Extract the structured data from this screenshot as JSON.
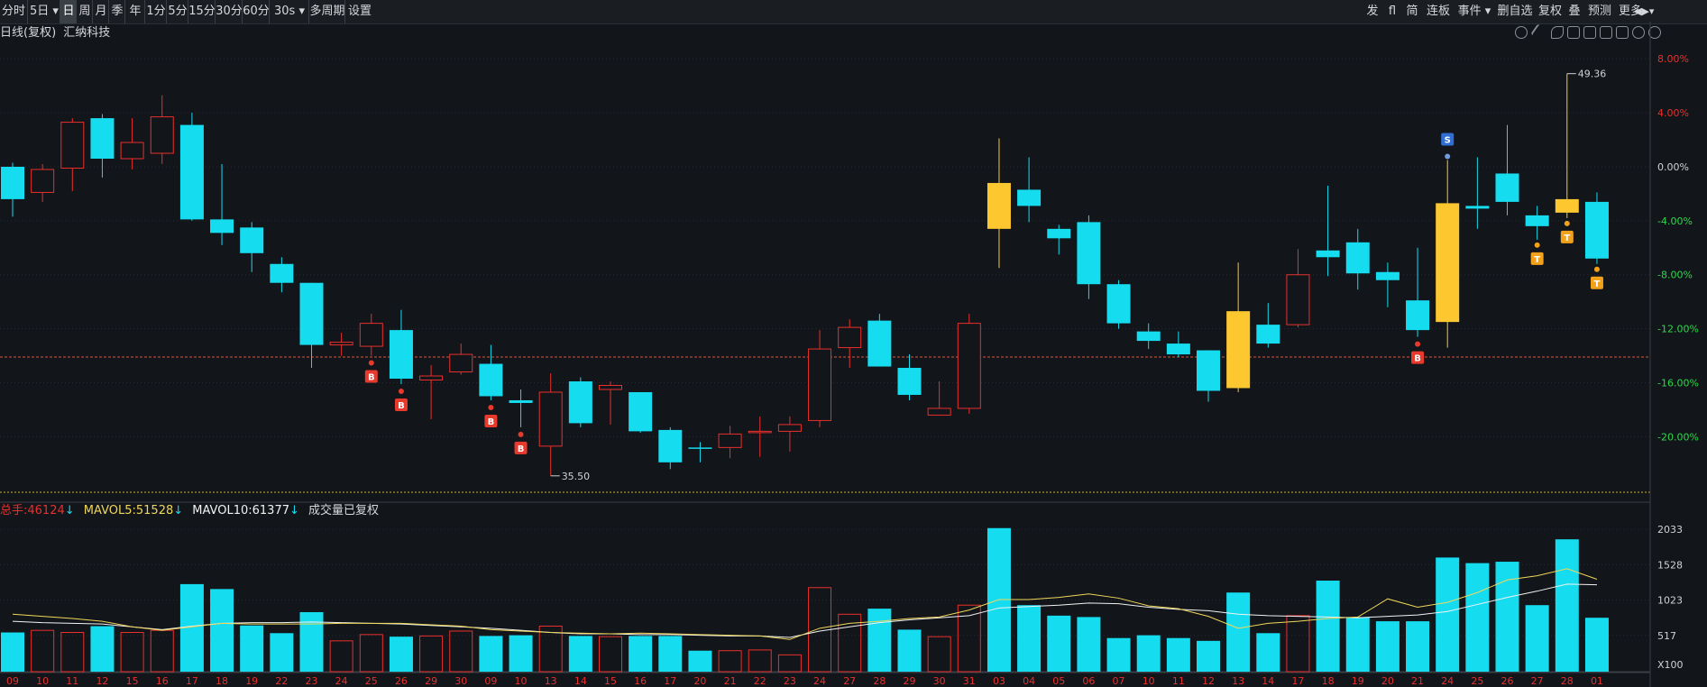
{
  "toolbar": {
    "left": [
      {
        "label": "分时",
        "name": "period-fenshi"
      },
      {
        "label": "5日",
        "name": "period-5day",
        "dropdown": true
      },
      {
        "label": "日",
        "name": "period-day",
        "selected": true
      },
      {
        "label": "周",
        "name": "period-week"
      },
      {
        "label": "月",
        "name": "period-month"
      },
      {
        "label": "季",
        "name": "period-quarter"
      },
      {
        "label": "年",
        "name": "period-year"
      },
      {
        "label": "1分",
        "name": "period-1min"
      },
      {
        "label": "5分",
        "name": "period-5min"
      },
      {
        "label": "15分",
        "name": "period-15min"
      },
      {
        "label": "30分",
        "name": "period-30min"
      },
      {
        "label": "60分",
        "name": "period-60min"
      },
      {
        "label": "30s",
        "name": "period-30s",
        "dropdown": true
      },
      {
        "label": "多周期",
        "name": "multi-period"
      },
      {
        "label": "设置",
        "name": "settings"
      }
    ],
    "right": [
      {
        "label": "发",
        "name": "tool-fa"
      },
      {
        "label": "fl",
        "name": "tool-fl"
      },
      {
        "label": "简",
        "name": "tool-jian"
      },
      {
        "label": "连板",
        "name": "tool-lianban"
      },
      {
        "label": "事件",
        "name": "tool-events",
        "dropdown": true
      },
      {
        "label": "删自选",
        "name": "tool-remove-watch"
      },
      {
        "label": "复权",
        "name": "tool-fuquan"
      },
      {
        "label": "叠",
        "name": "tool-overlay"
      },
      {
        "label": "预测",
        "name": "tool-forecast"
      },
      {
        "label": "更多",
        "name": "tool-more"
      }
    ]
  },
  "info": {
    "mode": "日线(复权)",
    "stock": "汇纳科技"
  },
  "volume_info": {
    "total_label": "总手:",
    "total_value": "46124",
    "total_arrow": "↓",
    "mavol5_label": "MAVOL5:",
    "mavol5_value": "51528",
    "mavol5_arrow": "↓",
    "mavol10_label": "MAVOL10:",
    "mavol10_value": "61377",
    "mavol10_arrow": "↓",
    "note": "成交量已复权"
  },
  "colors": {
    "up": "#e8302c",
    "down": "#16dcf0",
    "highlight": "#fdc730",
    "ma5": "#f0d75a",
    "ma10": "#f2f2f2",
    "signal_b": "#e8392d",
    "signal_s": "#2f6fd3",
    "signal_t": "#f2a21a"
  },
  "chart_data": {
    "type": "candlestick",
    "price_axis_label_unit": "%",
    "price_ticks": [
      "8.00%",
      "4.00%",
      "0.00%",
      "-4.00%",
      "-8.00%",
      "-12.00%",
      "-16.00%",
      "-20.00%"
    ],
    "price_tick_values": [
      8,
      4,
      0,
      -4,
      -8,
      -12,
      -16,
      -20
    ],
    "ylim_pct": [
      -24.25,
      9.15
    ],
    "reference_line_pct": -14.1,
    "annotations": [
      {
        "text": "49.36",
        "candle": 52,
        "at": "high"
      },
      {
        "text": "35.50",
        "candle": 18,
        "at": "low"
      }
    ],
    "dates": [
      "09",
      "10",
      "11",
      "12",
      "15",
      "16",
      "17",
      "18",
      "19",
      "22",
      "23",
      "24",
      "25",
      "26",
      "29",
      "30",
      "09",
      "10",
      "13",
      "14",
      "15",
      "16",
      "17",
      "20",
      "21",
      "22",
      "23",
      "24",
      "27",
      "28",
      "29",
      "30",
      "31",
      "03",
      "04",
      "05",
      "06",
      "07",
      "10",
      "11",
      "12",
      "13",
      "14",
      "17",
      "18",
      "19",
      "20",
      "21",
      "24",
      "25",
      "26",
      "27",
      "28",
      "01"
    ],
    "candles": [
      {
        "o": -2.4,
        "c": 0.0,
        "h": 0.3,
        "l": -3.7,
        "t": "d"
      },
      {
        "o": -1.9,
        "c": -0.2,
        "h": 0.2,
        "l": -2.6,
        "t": "u"
      },
      {
        "o": -0.1,
        "c": 3.3,
        "h": 3.6,
        "l": -1.8,
        "t": "u"
      },
      {
        "o": 3.6,
        "c": 0.6,
        "h": 3.9,
        "l": -0.8,
        "t": "d"
      },
      {
        "o": 0.6,
        "c": 1.8,
        "h": 3.6,
        "l": -0.2,
        "t": "u"
      },
      {
        "o": 1.0,
        "c": 3.7,
        "h": 5.3,
        "l": 0.2,
        "t": "u"
      },
      {
        "o": 3.1,
        "c": -3.9,
        "h": 4.0,
        "l": -4.0,
        "t": "d"
      },
      {
        "o": -3.9,
        "c": -4.9,
        "h": 0.2,
        "l": -5.8,
        "t": "d"
      },
      {
        "o": -4.5,
        "c": -6.4,
        "h": -4.1,
        "l": -7.8,
        "t": "d"
      },
      {
        "o": -7.2,
        "c": -8.6,
        "h": -6.7,
        "l": -9.3,
        "t": "d"
      },
      {
        "o": -8.6,
        "c": -13.2,
        "h": -8.6,
        "l": -14.9,
        "t": "d"
      },
      {
        "o": -13.2,
        "c": -13.0,
        "h": -12.3,
        "l": -14.0,
        "t": "u"
      },
      {
        "o": -13.3,
        "c": -11.6,
        "h": -10.9,
        "l": -14.0,
        "t": "u"
      },
      {
        "o": -12.1,
        "c": -15.7,
        "h": -10.6,
        "l": -16.1,
        "t": "d"
      },
      {
        "o": -15.8,
        "c": -15.5,
        "h": -14.7,
        "l": -18.7,
        "t": "u"
      },
      {
        "o": -15.2,
        "c": -13.9,
        "h": -13.1,
        "l": -15.4,
        "t": "u"
      },
      {
        "o": -14.6,
        "c": -17.0,
        "h": -13.2,
        "l": -17.3,
        "t": "d"
      },
      {
        "o": -17.3,
        "c": -17.5,
        "h": -16.5,
        "l": -19.3,
        "t": "d"
      },
      {
        "o": -20.7,
        "c": -16.7,
        "h": -15.3,
        "l": -22.9,
        "t": "u"
      },
      {
        "o": -15.9,
        "c": -19.0,
        "h": -15.6,
        "l": -19.3,
        "t": "d"
      },
      {
        "o": -16.5,
        "c": -16.2,
        "h": -15.9,
        "l": -19.1,
        "t": "u"
      },
      {
        "o": -16.7,
        "c": -19.6,
        "h": -16.7,
        "l": -19.7,
        "t": "d"
      },
      {
        "o": -19.5,
        "c": -21.9,
        "h": -19.3,
        "l": -22.4,
        "t": "d"
      },
      {
        "o": -20.8,
        "c": -20.8,
        "h": -20.4,
        "l": -21.9,
        "t": "d"
      },
      {
        "o": -20.8,
        "c": -19.8,
        "h": -19.2,
        "l": -21.6,
        "t": "u"
      },
      {
        "o": -19.6,
        "c": -19.6,
        "h": -18.5,
        "l": -21.5,
        "t": "u"
      },
      {
        "o": -19.6,
        "c": -19.1,
        "h": -18.5,
        "l": -21.1,
        "t": "u"
      },
      {
        "o": -18.8,
        "c": -13.5,
        "h": -12.1,
        "l": -19.3,
        "t": "u"
      },
      {
        "o": -13.4,
        "c": -11.9,
        "h": -11.3,
        "l": -14.9,
        "t": "u"
      },
      {
        "o": -11.4,
        "c": -14.8,
        "h": -10.9,
        "l": -14.8,
        "t": "d"
      },
      {
        "o": -14.9,
        "c": -16.9,
        "h": -13.9,
        "l": -17.3,
        "t": "d"
      },
      {
        "o": -18.4,
        "c": -17.9,
        "h": -15.9,
        "l": -18.4,
        "t": "u"
      },
      {
        "o": -17.9,
        "c": -11.6,
        "h": -10.9,
        "l": -18.3,
        "t": "u"
      },
      {
        "o": -1.2,
        "c": -4.6,
        "h": 2.1,
        "l": -7.5,
        "t": "h"
      },
      {
        "o": -1.7,
        "c": -2.9,
        "h": 0.7,
        "l": -4.1,
        "t": "d"
      },
      {
        "o": -4.6,
        "c": -5.3,
        "h": -4.3,
        "l": -6.5,
        "t": "d"
      },
      {
        "o": -4.1,
        "c": -8.7,
        "h": -3.6,
        "l": -9.8,
        "t": "d"
      },
      {
        "o": -8.7,
        "c": -11.6,
        "h": -8.4,
        "l": -12.0,
        "t": "d"
      },
      {
        "o": -12.2,
        "c": -12.9,
        "h": -11.6,
        "l": -13.5,
        "t": "d"
      },
      {
        "o": -13.1,
        "c": -13.9,
        "h": -12.2,
        "l": -14.1,
        "t": "d"
      },
      {
        "o": -13.6,
        "c": -16.6,
        "h": -13.6,
        "l": -17.4,
        "t": "d"
      },
      {
        "o": -16.4,
        "c": -10.7,
        "h": -7.1,
        "l": -16.7,
        "t": "h"
      },
      {
        "o": -11.7,
        "c": -13.1,
        "h": -10.1,
        "l": -13.4,
        "t": "d"
      },
      {
        "o": -11.7,
        "c": -8.0,
        "h": -6.1,
        "l": -11.9,
        "t": "u"
      },
      {
        "o": -6.2,
        "c": -6.7,
        "h": -1.4,
        "l": -8.1,
        "t": "d"
      },
      {
        "o": -5.6,
        "c": -7.9,
        "h": -4.6,
        "l": -9.1,
        "t": "d"
      },
      {
        "o": -7.8,
        "c": -8.4,
        "h": -7.1,
        "l": -10.4,
        "t": "d"
      },
      {
        "o": -9.9,
        "c": -12.1,
        "h": -6.0,
        "l": -12.6,
        "t": "d"
      },
      {
        "o": -11.5,
        "c": -2.7,
        "h": 0.5,
        "l": -13.4,
        "t": "h"
      },
      {
        "o": -2.9,
        "c": -3.1,
        "h": 0.7,
        "l": -4.6,
        "t": "d"
      },
      {
        "o": -0.5,
        "c": -2.6,
        "h": 3.1,
        "l": -3.6,
        "t": "d"
      },
      {
        "o": -3.6,
        "c": -4.4,
        "h": -2.9,
        "l": -5.4,
        "t": "d"
      },
      {
        "o": -2.4,
        "c": -3.4,
        "h": 6.9,
        "l": -3.8,
        "t": "h"
      },
      {
        "o": -2.6,
        "c": -6.8,
        "h": -1.9,
        "l": -7.2,
        "t": "d"
      }
    ],
    "signals": [
      {
        "candle": 12,
        "type": "B"
      },
      {
        "candle": 13,
        "type": "B"
      },
      {
        "candle": 16,
        "type": "B"
      },
      {
        "candle": 17,
        "type": "B"
      },
      {
        "candle": 47,
        "type": "B"
      },
      {
        "candle": 48,
        "type": "S"
      },
      {
        "candle": 51,
        "type": "T"
      },
      {
        "candle": 52,
        "type": "T"
      },
      {
        "candle": 53,
        "type": "T"
      }
    ],
    "volume": {
      "unit": "X100",
      "ticks": [
        "2033",
        "1528",
        "1023",
        "517"
      ],
      "tick_values": [
        2033,
        1528,
        1023,
        517
      ],
      "ymax": 2150,
      "bars": [
        560,
        590,
        560,
        650,
        560,
        590,
        1250,
        1180,
        660,
        550,
        850,
        440,
        530,
        500,
        510,
        580,
        510,
        520,
        650,
        510,
        500,
        510,
        510,
        300,
        300,
        310,
        240,
        1200,
        820,
        900,
        600,
        500,
        950,
        2050,
        950,
        800,
        780,
        480,
        520,
        480,
        440,
        1130,
        550,
        800,
        1300,
        780,
        720,
        720,
        1630,
        1550,
        1570,
        950,
        1890,
        770
      ],
      "ma5": [
        820,
        790,
        760,
        720,
        640,
        590,
        640,
        690,
        680,
        680,
        680,
        690,
        690,
        690,
        670,
        650,
        600,
        580,
        560,
        550,
        540,
        550,
        540,
        530,
        520,
        510,
        460,
        620,
        690,
        720,
        760,
        780,
        880,
        1030,
        1030,
        1060,
        1110,
        1050,
        940,
        900,
        790,
        620,
        690,
        720,
        760,
        780,
        1040,
        920,
        990,
        1130,
        1310,
        1370,
        1470,
        1320
      ],
      "ma10": [
        720,
        700,
        690,
        680,
        640,
        600,
        650,
        690,
        700,
        700,
        710,
        700,
        690,
        680,
        660,
        640,
        620,
        590,
        560,
        540,
        540,
        530,
        530,
        520,
        510,
        510,
        490,
        580,
        640,
        700,
        740,
        770,
        800,
        910,
        930,
        950,
        980,
        970,
        920,
        890,
        870,
        820,
        800,
        790,
        780,
        770,
        790,
        810,
        860,
        960,
        1060,
        1150,
        1250,
        1240
      ]
    }
  }
}
